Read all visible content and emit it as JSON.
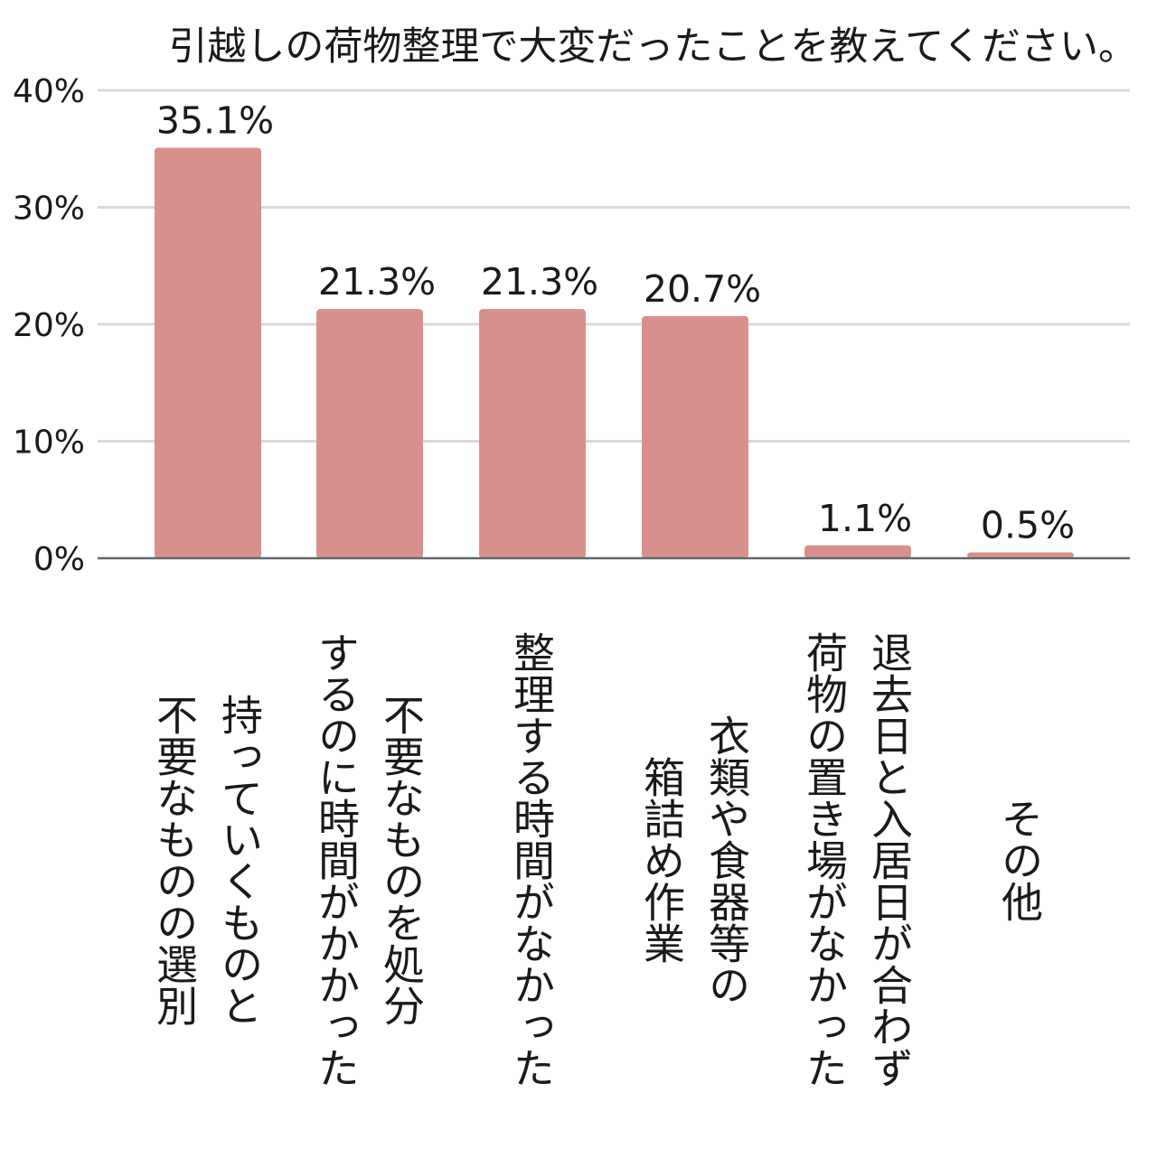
{
  "chart_data": {
    "type": "bar",
    "title": "引越しの荷物整理で大変だったことを教えてください。",
    "categories": [
      [
        "持っていくものと",
        "不要なものの選別"
      ],
      [
        "不要なものを処分",
        "するのに時間がかかった"
      ],
      [
        "整理する時間がなかった"
      ],
      [
        "衣類や食器等の",
        "箱詰め作業"
      ],
      [
        "退去日と入居日が合わず",
        "荷物の置き場がなかった"
      ],
      [
        "その他"
      ]
    ],
    "values": [
      35.1,
      21.3,
      21.3,
      20.7,
      1.1,
      0.5
    ],
    "data_labels": [
      "35.1%",
      "21.3%",
      "21.3%",
      "20.7%",
      "1.1%",
      "0.5%"
    ],
    "yticks": [
      0,
      10,
      20,
      30,
      40
    ],
    "ytick_labels": [
      "0%",
      "10%",
      "20%",
      "30%",
      "40%"
    ],
    "ylim": [
      0,
      40
    ],
    "grid": true,
    "colors": {
      "bar": "#d8908c",
      "grid": "#d9d9d9",
      "axis": "#5f6a6a"
    }
  }
}
